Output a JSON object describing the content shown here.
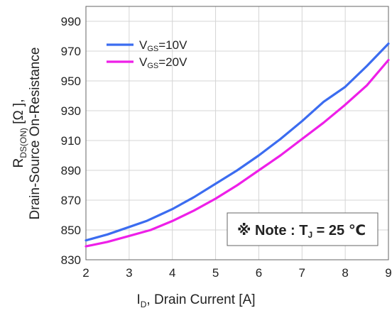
{
  "chart_data": {
    "type": "line",
    "xlabel": {
      "prefix": "I",
      "sub": "D",
      "suffix": ", Drain Current [A]"
    },
    "ylabel": {
      "line1_prefix": "R",
      "line1_sub": "DS(ON)",
      "line1_suffix": " [Ω ],",
      "line2": "Drain-Source On-Resistance"
    },
    "xlim": [
      2,
      9
    ],
    "ylim": [
      830,
      1000
    ],
    "x_ticks": [
      "2",
      "3",
      "4",
      "5",
      "6",
      "7",
      "8",
      "9"
    ],
    "y_ticks": [
      "830",
      "850",
      "870",
      "890",
      "910",
      "930",
      "950",
      "970",
      "990"
    ],
    "grid": true,
    "legend_position": "top-left",
    "series": [
      {
        "legend_prefix": "V",
        "legend_sub": "GS",
        "legend_suffix": "=10V",
        "color": "#3b6cf0",
        "x": [
          2.0,
          2.5,
          3.0,
          3.4,
          3.7,
          4.0,
          4.5,
          5.0,
          5.5,
          6.0,
          6.5,
          7.0,
          7.5,
          7.7,
          8.0,
          8.5,
          9.0
        ],
        "y": [
          843,
          847,
          852,
          856,
          860,
          864,
          872,
          881,
          890,
          900,
          911,
          923,
          936,
          940,
          946,
          960,
          975
        ]
      },
      {
        "legend_prefix": "V",
        "legend_sub": "GS",
        "legend_suffix": "=20V",
        "color": "#ee1fe8",
        "x": [
          2.0,
          2.5,
          3.0,
          3.5,
          4.0,
          4.5,
          5.0,
          5.5,
          6.0,
          6.5,
          7.0,
          7.5,
          8.0,
          8.5,
          9.0
        ],
        "y": [
          839,
          842,
          846,
          850,
          856,
          863,
          871,
          880,
          890,
          900,
          911,
          922,
          934,
          947,
          964
        ]
      }
    ],
    "annotation": {
      "prefix": "※ Note : T",
      "sub": "J",
      "suffix": " = 25 ℃"
    }
  }
}
